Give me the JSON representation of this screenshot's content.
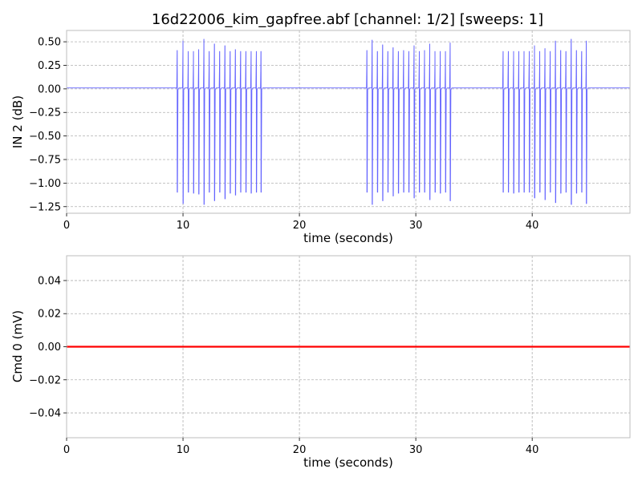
{
  "title": "16d22006_kim_gapfree.abf [channel: 1/2] [sweeps: 1]",
  "chart_data": [
    {
      "type": "line",
      "title": "16d22006_kim_gapfree.abf [channel: 1/2] [sweeps: 1]",
      "xlabel": "time (seconds)",
      "ylabel": "IN 2 (dB)",
      "xlim": [
        0,
        48.4
      ],
      "ylim": [
        -1.32,
        0.62
      ],
      "xticks": [
        0,
        10,
        20,
        30,
        40
      ],
      "yticks": [
        0.5,
        0.25,
        0.0,
        -0.25,
        -0.5,
        -0.75,
        -1.0,
        -1.25
      ],
      "ytick_labels": [
        "0.50",
        "0.25",
        "0.00",
        "−0.25",
        "−0.50",
        "−0.75",
        "−1.00",
        "−1.25"
      ],
      "xtick_labels": [
        "0",
        "10",
        "20",
        "30",
        "40"
      ],
      "grid": true,
      "baseline": 0.01,
      "color": "#6464ff",
      "bursts": [
        {
          "spikes": [
            {
              "t": 9.5,
              "max": 0.41,
              "min": -1.1
            },
            {
              "t": 10.0,
              "max": 0.51,
              "min": -1.22
            },
            {
              "t": 10.45,
              "max": 0.4,
              "min": -1.1
            },
            {
              "t": 10.9,
              "max": 0.4,
              "min": -1.11
            },
            {
              "t": 11.35,
              "max": 0.42,
              "min": -1.12
            },
            {
              "t": 11.8,
              "max": 0.53,
              "min": -1.23
            },
            {
              "t": 12.25,
              "max": 0.4,
              "min": -1.1
            },
            {
              "t": 12.7,
              "max": 0.48,
              "min": -1.19
            },
            {
              "t": 13.15,
              "max": 0.4,
              "min": -1.1
            },
            {
              "t": 13.6,
              "max": 0.46,
              "min": -1.17
            },
            {
              "t": 14.05,
              "max": 0.4,
              "min": -1.11
            },
            {
              "t": 14.5,
              "max": 0.42,
              "min": -1.13
            },
            {
              "t": 14.95,
              "max": 0.4,
              "min": -1.1
            },
            {
              "t": 15.4,
              "max": 0.4,
              "min": -1.1
            },
            {
              "t": 15.85,
              "max": 0.4,
              "min": -1.11
            },
            {
              "t": 16.3,
              "max": 0.4,
              "min": -1.1
            },
            {
              "t": 16.7,
              "max": 0.4,
              "min": -1.1
            }
          ]
        },
        {
          "spikes": [
            {
              "t": 25.8,
              "max": 0.41,
              "min": -1.1
            },
            {
              "t": 26.25,
              "max": 0.52,
              "min": -1.23
            },
            {
              "t": 26.7,
              "max": 0.4,
              "min": -1.1
            },
            {
              "t": 27.15,
              "max": 0.47,
              "min": -1.19
            },
            {
              "t": 27.6,
              "max": 0.4,
              "min": -1.1
            },
            {
              "t": 28.05,
              "max": 0.44,
              "min": -1.14
            },
            {
              "t": 28.5,
              "max": 0.4,
              "min": -1.11
            },
            {
              "t": 28.95,
              "max": 0.41,
              "min": -1.1
            },
            {
              "t": 29.4,
              "max": 0.4,
              "min": -1.1
            },
            {
              "t": 29.85,
              "max": 0.46,
              "min": -1.16
            },
            {
              "t": 30.3,
              "max": 0.4,
              "min": -1.1
            },
            {
              "t": 30.75,
              "max": 0.41,
              "min": -1.1
            },
            {
              "t": 31.2,
              "max": 0.48,
              "min": -1.18
            },
            {
              "t": 31.65,
              "max": 0.4,
              "min": -1.1
            },
            {
              "t": 32.1,
              "max": 0.4,
              "min": -1.11
            },
            {
              "t": 32.55,
              "max": 0.4,
              "min": -1.1
            },
            {
              "t": 32.95,
              "max": 0.49,
              "min": -1.19
            }
          ]
        },
        {
          "spikes": [
            {
              "t": 37.5,
              "max": 0.4,
              "min": -1.1
            },
            {
              "t": 37.95,
              "max": 0.4,
              "min": -1.1
            },
            {
              "t": 38.4,
              "max": 0.4,
              "min": -1.11
            },
            {
              "t": 38.85,
              "max": 0.4,
              "min": -1.1
            },
            {
              "t": 39.3,
              "max": 0.4,
              "min": -1.1
            },
            {
              "t": 39.75,
              "max": 0.4,
              "min": -1.1
            },
            {
              "t": 40.2,
              "max": 0.46,
              "min": -1.16
            },
            {
              "t": 40.65,
              "max": 0.4,
              "min": -1.1
            },
            {
              "t": 41.1,
              "max": 0.43,
              "min": -1.18
            },
            {
              "t": 41.55,
              "max": 0.4,
              "min": -1.1
            },
            {
              "t": 42.0,
              "max": 0.51,
              "min": -1.21
            },
            {
              "t": 42.45,
              "max": 0.41,
              "min": -1.11
            },
            {
              "t": 42.9,
              "max": 0.4,
              "min": -1.1
            },
            {
              "t": 43.35,
              "max": 0.53,
              "min": -1.23
            },
            {
              "t": 43.8,
              "max": 0.41,
              "min": -1.11
            },
            {
              "t": 44.25,
              "max": 0.4,
              "min": -1.1
            },
            {
              "t": 44.65,
              "max": 0.51,
              "min": -1.22
            }
          ]
        }
      ]
    },
    {
      "type": "line",
      "title": "",
      "xlabel": "time (seconds)",
      "ylabel": "Cmd 0 (mV)",
      "xlim": [
        0,
        48.4
      ],
      "ylim": [
        -0.055,
        0.055
      ],
      "xticks": [
        0,
        10,
        20,
        30,
        40
      ],
      "xtick_labels": [
        "0",
        "10",
        "20",
        "30",
        "40"
      ],
      "yticks": [
        0.04,
        0.02,
        0.0,
        -0.02,
        -0.04
      ],
      "ytick_labels": [
        "0.04",
        "0.02",
        "0.00",
        "−0.02",
        "−0.04"
      ],
      "grid": true,
      "color": "#ff0000",
      "series": [
        {
          "x": [
            0,
            48.4
          ],
          "y": [
            0,
            0
          ]
        }
      ]
    }
  ]
}
